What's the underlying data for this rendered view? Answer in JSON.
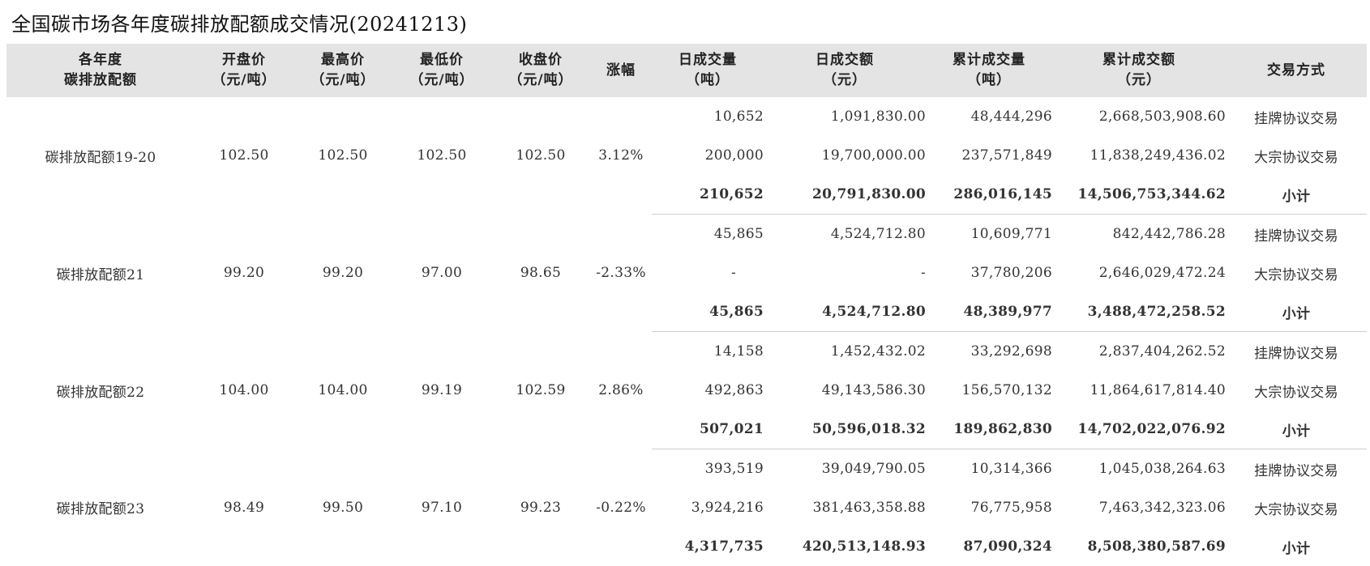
{
  "title": "全国碳市场各年度碳排放配额成交情况(20241213)",
  "headers": [
    [
      "各年度",
      "碳排放配额"
    ],
    [
      "开盘价",
      "（元/吨）"
    ],
    [
      "最高价",
      "（元/吨）"
    ],
    [
      "最低价",
      "（元/吨）"
    ],
    [
      "收盘价",
      "（元/吨）"
    ],
    [
      "涨幅",
      ""
    ],
    [
      "日成交量",
      "（吨）"
    ],
    [
      "日成交额",
      "（元）"
    ],
    [
      "累计成交量",
      "（吨）"
    ],
    [
      "累计成交额",
      "（元）"
    ],
    [
      "交易方式",
      ""
    ]
  ],
  "groups": [
    {
      "name": "碳排放配额19-20",
      "open": "102.50",
      "high": "102.50",
      "low": "102.50",
      "close": "102.50",
      "change": "3.12%",
      "rows": [
        {
          "day_vol": "10,652",
          "day_amt": "1,091,830.00",
          "cum_vol": "48,444,296",
          "cum_amt": "2,668,503,908.60",
          "method": "挂牌协议交易"
        },
        {
          "day_vol": "200,000",
          "day_amt": "19,700,000.00",
          "cum_vol": "237,571,849",
          "cum_amt": "11,838,249,436.02",
          "method": "大宗协议交易"
        },
        {
          "day_vol": "210,652",
          "day_amt": "20,791,830.00",
          "cum_vol": "286,016,145",
          "cum_amt": "14,506,753,344.62",
          "method": "小计"
        }
      ]
    },
    {
      "name": "碳排放配额21",
      "open": "99.20",
      "high": "99.20",
      "low": "97.00",
      "close": "98.65",
      "change": "-2.33%",
      "rows": [
        {
          "day_vol": "45,865",
          "day_amt": "4,524,712.80",
          "cum_vol": "10,609,771",
          "cum_amt": "842,442,786.28",
          "method": "挂牌协议交易"
        },
        {
          "day_vol": "-",
          "day_amt": "-",
          "cum_vol": "37,780,206",
          "cum_amt": "2,646,029,472.24",
          "method": "大宗协议交易"
        },
        {
          "day_vol": "45,865",
          "day_amt": "4,524,712.80",
          "cum_vol": "48,389,977",
          "cum_amt": "3,488,472,258.52",
          "method": "小计"
        }
      ]
    },
    {
      "name": "碳排放配额22",
      "open": "104.00",
      "high": "104.00",
      "low": "99.19",
      "close": "102.59",
      "change": "2.86%",
      "rows": [
        {
          "day_vol": "14,158",
          "day_amt": "1,452,432.02",
          "cum_vol": "33,292,698",
          "cum_amt": "2,837,404,262.52",
          "method": "挂牌协议交易"
        },
        {
          "day_vol": "492,863",
          "day_amt": "49,143,586.30",
          "cum_vol": "156,570,132",
          "cum_amt": "11,864,617,814.40",
          "method": "大宗协议交易"
        },
        {
          "day_vol": "507,021",
          "day_amt": "50,596,018.32",
          "cum_vol": "189,862,830",
          "cum_amt": "14,702,022,076.92",
          "method": "小计"
        }
      ]
    },
    {
      "name": "碳排放配额23",
      "open": "98.49",
      "high": "99.50",
      "low": "97.10",
      "close": "99.23",
      "change": "-0.22%",
      "rows": [
        {
          "day_vol": "393,519",
          "day_amt": "39,049,790.05",
          "cum_vol": "10,314,366",
          "cum_amt": "1,045,038,264.63",
          "method": "挂牌协议交易"
        },
        {
          "day_vol": "3,924,216",
          "day_amt": "381,463,358.88",
          "cum_vol": "76,775,958",
          "cum_amt": "7,463,342,323.06",
          "method": "大宗协议交易"
        },
        {
          "day_vol": "4,317,735",
          "day_amt": "420,513,148.93",
          "cum_vol": "87,090,324",
          "cum_amt": "8,508,380,587.69",
          "method": "小计"
        }
      ]
    }
  ]
}
